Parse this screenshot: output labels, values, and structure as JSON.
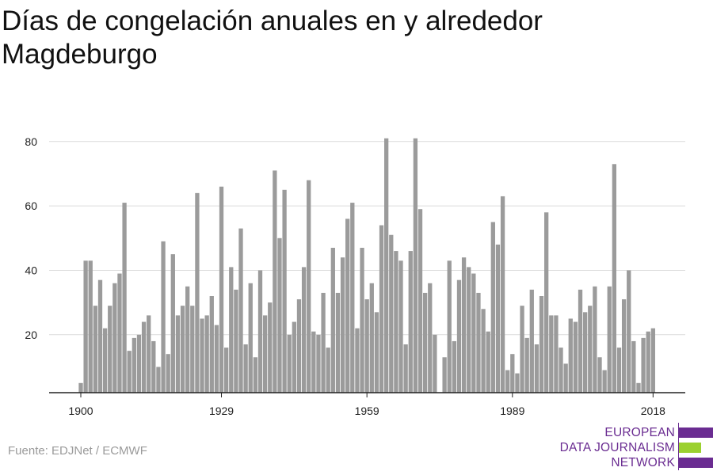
{
  "chart_data": {
    "type": "bar",
    "title": "Días de congelación anuales en y alrededor Magdeburgo",
    "xlabel": "",
    "ylabel": "",
    "x_range": [
      1899,
      2019
    ],
    "ylim": [
      2,
      82
    ],
    "yticks": [
      20,
      40,
      60,
      80
    ],
    "xticks": [
      1900,
      1929,
      1959,
      1989,
      2018
    ],
    "grid": "horizontal",
    "bar_color": "#9b9b9b",
    "x": [
      1900,
      1901,
      1902,
      1903,
      1904,
      1905,
      1906,
      1907,
      1908,
      1909,
      1910,
      1911,
      1912,
      1913,
      1914,
      1915,
      1916,
      1917,
      1918,
      1919,
      1920,
      1921,
      1922,
      1923,
      1924,
      1925,
      1926,
      1927,
      1928,
      1929,
      1930,
      1931,
      1932,
      1933,
      1934,
      1935,
      1936,
      1937,
      1938,
      1939,
      1940,
      1941,
      1942,
      1943,
      1944,
      1945,
      1946,
      1947,
      1948,
      1949,
      1950,
      1951,
      1952,
      1953,
      1954,
      1955,
      1956,
      1957,
      1958,
      1959,
      1960,
      1961,
      1962,
      1963,
      1964,
      1965,
      1966,
      1967,
      1968,
      1969,
      1970,
      1971,
      1972,
      1973,
      1974,
      1975,
      1976,
      1977,
      1978,
      1979,
      1980,
      1981,
      1982,
      1983,
      1984,
      1985,
      1986,
      1987,
      1988,
      1989,
      1990,
      1991,
      1992,
      1993,
      1994,
      1995,
      1996,
      1997,
      1998,
      1999,
      2000,
      2001,
      2002,
      2003,
      2004,
      2005,
      2006,
      2007,
      2008,
      2009,
      2010,
      2011,
      2012,
      2013,
      2014,
      2015,
      2016,
      2017,
      2018
    ],
    "values": [
      5,
      43,
      43,
      29,
      37,
      22,
      29,
      36,
      39,
      61,
      15,
      19,
      20,
      24,
      26,
      18,
      10,
      49,
      14,
      45,
      26,
      29,
      35,
      29,
      64,
      25,
      26,
      32,
      23,
      66,
      16,
      41,
      34,
      53,
      17,
      36,
      13,
      40,
      26,
      30,
      71,
      50,
      65,
      20,
      24,
      31,
      41,
      68,
      21,
      20,
      33,
      16,
      47,
      33,
      44,
      56,
      61,
      22,
      47,
      31,
      36,
      27,
      54,
      81,
      51,
      46,
      43,
      17,
      46,
      81,
      59,
      33,
      36,
      20,
      0,
      13,
      43,
      18,
      37,
      44,
      41,
      39,
      33,
      28,
      21,
      55,
      48,
      63,
      9,
      14,
      8,
      29,
      19,
      34,
      17,
      32,
      58,
      26,
      26,
      16,
      11,
      25,
      24,
      34,
      27,
      29,
      35,
      13,
      9,
      35,
      73,
      16,
      31,
      40,
      18,
      5,
      19,
      21,
      22
    ]
  },
  "source": "Fuente: EDJNet / ECMWF",
  "logo": {
    "line1": "EUROPEAN",
    "line2": "DATA JOURNALISM",
    "line3": "NETWORK",
    "colors": {
      "purple": "#6a2c91",
      "green": "#9bd12f"
    }
  }
}
